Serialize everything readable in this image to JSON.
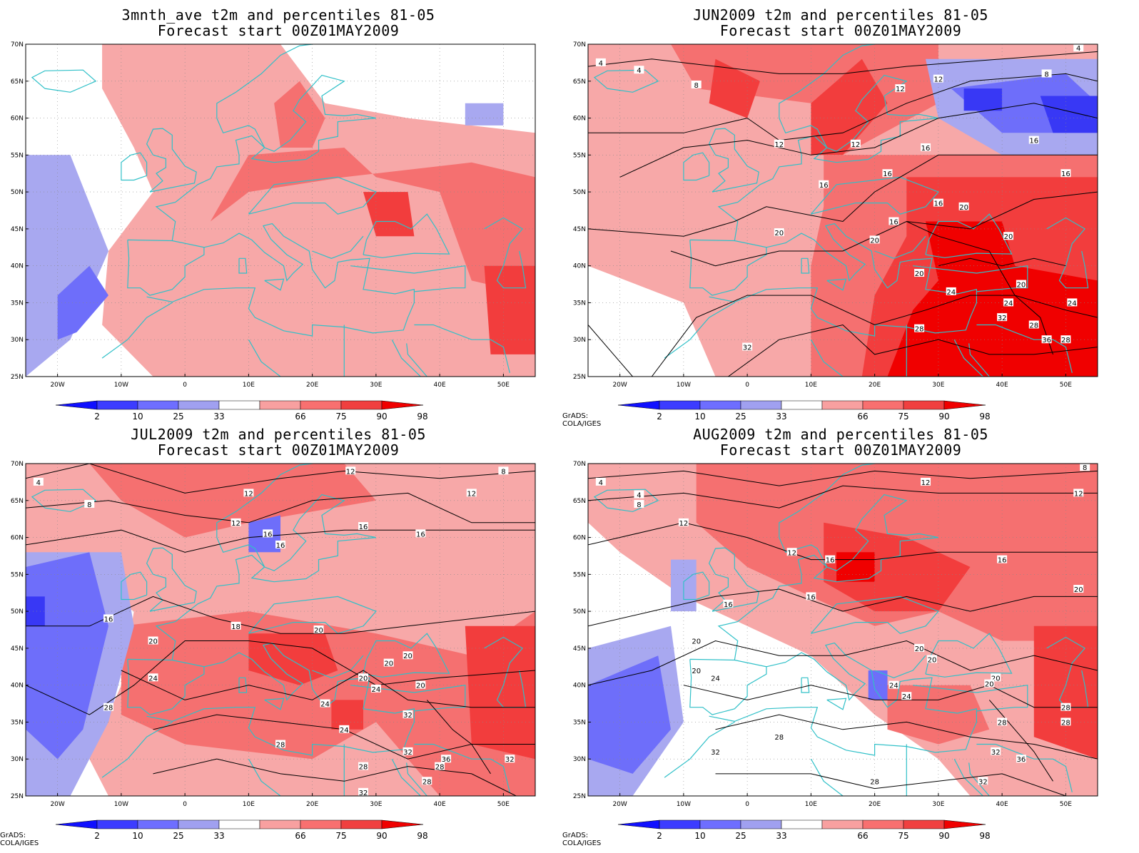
{
  "panels": [
    {
      "title_line1": "3mnth_ave t2m and percentiles 81-05",
      "title_line2": "Forecast start 00Z01MAY2009",
      "contour_labels": [],
      "credit": ""
    },
    {
      "title_line1": "JUN2009 t2m and percentiles 81-05",
      "title_line2": "Forecast start 00Z01MAY2009",
      "contour_labels": [
        "4",
        "4",
        "4",
        "8",
        "8",
        "12",
        "12",
        "12",
        "12",
        "16",
        "16",
        "16",
        "16",
        "16",
        "16",
        "16",
        "20",
        "20",
        "20",
        "20",
        "20",
        "20",
        "24",
        "24",
        "24",
        "28",
        "28",
        "28",
        "32",
        "32",
        "36"
      ],
      "credit": "GrADS: COLA/IGES"
    },
    {
      "title_line1": "JUL2009 t2m and percentiles 81-05",
      "title_line2": "Forecast start 00Z01MAY2009",
      "contour_labels": [
        "4",
        "8",
        "8",
        "12",
        "12",
        "12",
        "12",
        "16",
        "16",
        "16",
        "16",
        "16",
        "18",
        "20",
        "20",
        "20",
        "20",
        "20",
        "20",
        "24",
        "24",
        "24",
        "24",
        "28",
        "28",
        "28",
        "28",
        "28",
        "32",
        "32",
        "32",
        "32",
        "36"
      ],
      "credit": "GrADS: COLA/IGES"
    },
    {
      "title_line1": "AUG2009 t2m and percentiles 81-05",
      "title_line2": "Forecast start 00Z01MAY2009",
      "contour_labels": [
        "4",
        "4",
        "8",
        "8",
        "12",
        "12",
        "12",
        "12",
        "16",
        "16",
        "16",
        "16",
        "20",
        "20",
        "20",
        "20",
        "20",
        "20",
        "20",
        "24",
        "24",
        "24",
        "28",
        "28",
        "28",
        "28",
        "28",
        "32",
        "32",
        "32",
        "36"
      ],
      "credit": "GrADS: COLA/IGES"
    }
  ],
  "axes": {
    "lat_labels": [
      "70N",
      "65N",
      "60N",
      "55N",
      "50N",
      "45N",
      "40N",
      "35N",
      "30N",
      "25N"
    ],
    "lon_labels": [
      "20W",
      "10W",
      "0",
      "10E",
      "20E",
      "30E",
      "40E",
      "50E"
    ]
  },
  "colorbar": {
    "labels": [
      "2",
      "10",
      "25",
      "33",
      "66",
      "75",
      "90",
      "98"
    ],
    "colors": [
      "#1010ff",
      "#3c3cff",
      "#6e6eff",
      "#a0a0f0",
      "#ffffff",
      "#f8a0a0",
      "#f87070",
      "#f04040",
      "#f00000"
    ]
  },
  "colors": {
    "coast": "#30c0c8",
    "contour": "#000000",
    "light_red": "#f7a8a8",
    "mid_red": "#f57070",
    "red": "#f23d3d",
    "deep_red": "#f00000",
    "light_blue": "#a8a8f0",
    "mid_blue": "#6e6efa",
    "blue": "#3838f5"
  }
}
